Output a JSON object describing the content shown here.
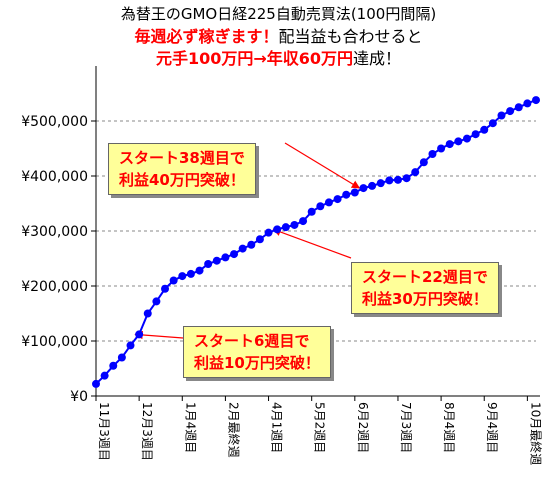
{
  "header": {
    "line1": "為替王のGMO日経225自動売買法(100円間隔)",
    "line2_red": "毎週必ず稼ぎます！",
    "line2_black": "配当益も合わせると",
    "line3_red": "元手100万円→年収60万円",
    "line3_black": "達成！"
  },
  "callouts": [
    {
      "line1": "スタート38週目で",
      "line2": "利益40万円突破！"
    },
    {
      "line1": "スタート22週目で",
      "line2": "利益30万円突破！"
    },
    {
      "line1": "スタート6週目で",
      "line2": "利益10万円突破！"
    }
  ],
  "colors": {
    "series": "#0000ff",
    "callout_bg": "#ffff99",
    "callout_text": "#ff0000",
    "arrow": "#ff0000"
  },
  "chart_data": {
    "type": "line",
    "ylim": [
      0,
      600000
    ],
    "yticks": [
      0,
      100000,
      200000,
      300000,
      400000,
      500000
    ],
    "ytick_labels": [
      "¥0",
      "¥100,000",
      "¥200,000",
      "¥300,000",
      "¥400,000",
      "¥500,000"
    ],
    "xtick_labels": [
      "11月3週目",
      "12月3週目",
      "1月4週目",
      "2月最終週",
      "4月1週目",
      "5月2週目",
      "6月2週目",
      "7月3週目",
      "8月4週目",
      "9月4週目",
      "10月最終週"
    ],
    "xtick_index": [
      0,
      5,
      10,
      15,
      20,
      25,
      30,
      35,
      40,
      45,
      50
    ],
    "grid": true,
    "legend": "none",
    "values": [
      22000,
      37000,
      55000,
      70000,
      92000,
      112000,
      150000,
      172000,
      195000,
      210000,
      218000,
      222000,
      228000,
      240000,
      246000,
      252000,
      258000,
      268000,
      275000,
      285000,
      297000,
      303000,
      307000,
      311000,
      318000,
      335000,
      345000,
      352000,
      358000,
      366000,
      370000,
      378000,
      382000,
      387000,
      392000,
      393000,
      396000,
      407000,
      425000,
      440000,
      450000,
      458000,
      463000,
      468000,
      476000,
      484000,
      496000,
      510000,
      518000,
      525000,
      532000,
      538000
    ]
  }
}
